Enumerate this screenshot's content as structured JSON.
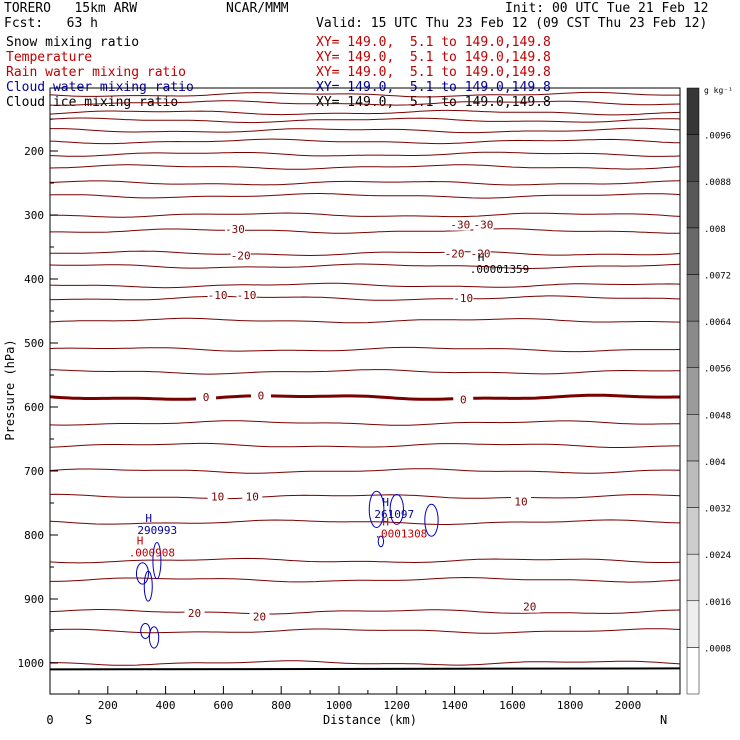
{
  "header": {
    "model": "TORERO   15km ARW",
    "org": "NCAR/MMM",
    "init": "Init: 00 UTC Tue 21 Feb 12",
    "fcst": "Fcst:   63 h",
    "valid": "Valid: 15 UTC Thu 23 Feb 12 (09 CST Thu 23 Feb 12)"
  },
  "fields": [
    {
      "label": "Snow mixing ratio",
      "xy": "XY= 149.0,  5.1 to 149.0,149.8",
      "color": "#000000"
    },
    {
      "label": "Temperature",
      "xy": "XY= 149.0,  5.1 to 149.0,149.8",
      "color": "#c00000"
    },
    {
      "label": "Rain water mixing ratio",
      "xy": "XY= 149.0,  5.1 to 149.0,149.8",
      "color": "#c00000"
    },
    {
      "label": "Cloud water mixing ratio",
      "xy": "XY= 149.0,  5.1 to 149.0,149.8",
      "color": "#0000a0"
    },
    {
      "label": "Cloud ice mixing ratio",
      "xy": "XY= 149.0,  5.1 to 149.0,149.8",
      "color": "#000000"
    }
  ],
  "chart_data": {
    "type": "cross-section contour",
    "xlabel": "Distance (km)",
    "ylabel": "Pressure (hPa)",
    "xlim": [
      0,
      2180
    ],
    "ylim_hpa": [
      1050,
      100
    ],
    "xticks": [
      0,
      200,
      400,
      600,
      800,
      1000,
      1200,
      1400,
      1600,
      1800,
      2000
    ],
    "yticks": [
      200,
      300,
      400,
      500,
      600,
      700,
      800,
      900,
      1000
    ],
    "left_end_label": "S",
    "right_end_label": "N",
    "temperature_isotherms": [
      {
        "pressure_hpa": 112
      },
      {
        "pressure_hpa": 125
      },
      {
        "pressure_hpa": 140
      },
      {
        "pressure_hpa": 152
      },
      {
        "pressure_hpa": 168
      },
      {
        "pressure_hpa": 185
      },
      {
        "pressure_hpa": 205
      },
      {
        "pressure_hpa": 225
      },
      {
        "pressure_hpa": 250
      },
      {
        "pressure_hpa": 270
      },
      {
        "pressure_hpa": 300
      },
      {
        "pressure_hpa": 325,
        "label": "-30"
      },
      {
        "pressure_hpa": 360,
        "label": "-20"
      },
      {
        "pressure_hpa": 380
      },
      {
        "pressure_hpa": 410
      },
      {
        "pressure_hpa": 430,
        "label": "-10"
      },
      {
        "pressure_hpa": 465
      },
      {
        "pressure_hpa": 510
      },
      {
        "pressure_hpa": 545
      },
      {
        "pressure_hpa": 585,
        "label": "0",
        "bold": true
      },
      {
        "pressure_hpa": 625
      },
      {
        "pressure_hpa": 660
      },
      {
        "pressure_hpa": 700
      },
      {
        "pressure_hpa": 740,
        "label": "10"
      },
      {
        "pressure_hpa": 780
      },
      {
        "pressure_hpa": 840
      },
      {
        "pressure_hpa": 870
      },
      {
        "pressure_hpa": 920,
        "label": "20"
      },
      {
        "pressure_hpa": 950
      },
      {
        "pressure_hpa": 1000
      }
    ],
    "isotherm_labels": [
      {
        "text": "-30",
        "x": 640,
        "p": 322
      },
      {
        "text": "-30",
        "x": 1420,
        "p": 315
      },
      {
        "text": "-30",
        "x": 1500,
        "p": 315
      },
      {
        "text": "-20",
        "x": 660,
        "p": 363
      },
      {
        "text": "-20",
        "x": 1400,
        "p": 360
      },
      {
        "text": "-20",
        "x": 1490,
        "p": 360
      },
      {
        "text": "-10",
        "x": 580,
        "p": 425
      },
      {
        "text": "-10",
        "x": 680,
        "p": 425
      },
      {
        "text": "-10",
        "x": 1430,
        "p": 430
      },
      {
        "text": "0",
        "x": 540,
        "p": 584
      },
      {
        "text": "0",
        "x": 730,
        "p": 582
      },
      {
        "text": "0",
        "x": 1430,
        "p": 588
      },
      {
        "text": "10",
        "x": 580,
        "p": 740
      },
      {
        "text": "10",
        "x": 700,
        "p": 740
      },
      {
        "text": "10",
        "x": 1630,
        "p": 748
      },
      {
        "text": "20",
        "x": 500,
        "p": 922
      },
      {
        "text": "20",
        "x": 725,
        "p": 927
      },
      {
        "text": "20",
        "x": 1660,
        "p": 912
      }
    ],
    "extrema": [
      {
        "text": "H",
        "value": ".00001359",
        "x": 1480,
        "p": 372,
        "color": "#000000"
      },
      {
        "text": "H",
        "value": "290993",
        "x": 330,
        "p": 780,
        "color": "#0000a0"
      },
      {
        "text": "H",
        "value": ".000908",
        "x": 300,
        "p": 815,
        "color": "#c00000"
      },
      {
        "text": "H",
        "value": "261097",
        "x": 1150,
        "p": 755,
        "color": "#0000a0"
      },
      {
        "text": "H",
        "value": ".0001308",
        "x": 1150,
        "p": 785,
        "color": "#c00000"
      }
    ],
    "colorbar": {
      "unit": "g kg⁻¹",
      "ticks": [
        ".0008",
        ".0016",
        ".0024",
        ".0032",
        ".004",
        ".0048",
        ".0056",
        ".0064",
        ".0072",
        ".008",
        ".0088",
        ".0096"
      ]
    }
  }
}
